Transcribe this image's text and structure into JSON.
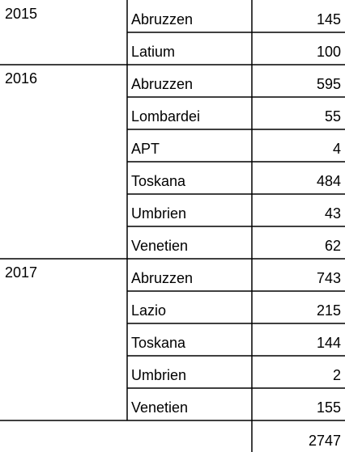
{
  "table": {
    "groups": [
      {
        "year": "2015",
        "rows": [
          {
            "region": "Abruzzen",
            "value": 145
          },
          {
            "region": "Latium",
            "value": 100
          }
        ]
      },
      {
        "year": "2016",
        "rows": [
          {
            "region": "Abruzzen",
            "value": 595
          },
          {
            "region": "Lombardei",
            "value": 55
          },
          {
            "region": "APT",
            "value": 4
          },
          {
            "region": "Toskana",
            "value": 484
          },
          {
            "region": "Umbrien",
            "value": 43
          },
          {
            "region": "Venetien",
            "value": 62
          }
        ]
      },
      {
        "year": "2017",
        "rows": [
          {
            "region": "Abruzzen",
            "value": 743
          },
          {
            "region": "Lazio",
            "value": 215
          },
          {
            "region": "Toskana",
            "value": 144
          },
          {
            "region": "Umbrien",
            "value": 2
          },
          {
            "region": "Venetien",
            "value": 155
          }
        ]
      }
    ],
    "total": 2747
  }
}
